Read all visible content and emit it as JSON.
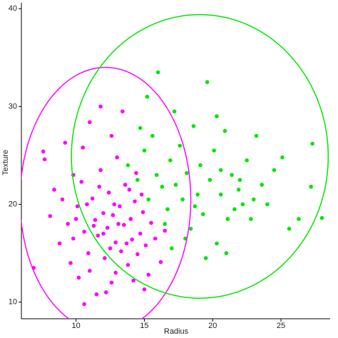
{
  "chart_data": {
    "type": "scatter",
    "x_label": "Radius",
    "y_label": "Texture",
    "xlim": [
      6.0,
      28.6
    ],
    "ylim": [
      8.3,
      40.6
    ],
    "xticks": [
      10,
      15,
      20,
      25
    ],
    "yticks": [
      10,
      20,
      30,
      40
    ],
    "grid": false,
    "series": [
      {
        "color": "#ff00ff",
        "x": [
          7.6,
          7.7,
          8.4,
          9.0,
          9.4,
          9.8,
          10.1,
          10.4,
          10.6,
          10.9,
          11.0,
          11.2,
          11.4,
          11.6,
          11.8,
          12.0,
          12.1,
          12.3,
          12.4,
          12.6,
          12.7,
          12.9,
          13.0,
          13.2,
          13.3,
          13.5,
          13.6,
          13.8,
          14.0,
          14.1,
          14.3,
          14.5,
          14.7,
          14.9,
          15.1,
          15.3,
          15.5,
          15.8,
          16.2,
          16.5,
          6.9,
          8.8,
          9.6,
          10.2,
          11.5,
          12.2,
          11.0,
          11.8,
          12.6,
          13.4,
          10.5,
          9.8,
          12.8,
          13.9,
          14.4,
          10.8,
          11.3,
          12.5,
          13.1,
          12.0,
          13.7,
          14.8,
          10.0,
          11.7,
          12.9,
          14.2,
          15.0,
          10.6,
          8.1,
          9.2
        ],
        "values": [
          25.4,
          24.6,
          21.5,
          20.5,
          18.0,
          16.5,
          19.8,
          22.3,
          17.2,
          15.0,
          13.2,
          20.6,
          18.4,
          16.8,
          23.5,
          19.1,
          14.5,
          17.6,
          21.2,
          12.0,
          18.9,
          16.1,
          24.8,
          19.8,
          15.2,
          17.9,
          22.0,
          13.8,
          18.5,
          16.4,
          20.3,
          14.9,
          17.0,
          19.2,
          15.8,
          12.8,
          18.1,
          16.5,
          14.1,
          17.3,
          13.5,
          16.0,
          14.0,
          12.5,
          10.8,
          11.0,
          28.4,
          30.0,
          27.0,
          29.5,
          25.8,
          23.0,
          20.0,
          21.5,
          23.2,
          20.0,
          17.8,
          15.5,
          18.0,
          17.0,
          16.0,
          21.0,
          18.5,
          21.8,
          13.0,
          12.2,
          11.3,
          9.8,
          18.8,
          26.3
        ],
        "ellipse": {
          "cx": 12.15,
          "cy": 20.5,
          "rx": 6.25,
          "ry": 13.5
        }
      },
      {
        "color": "#00e600",
        "x": [
          13.8,
          14.5,
          15.0,
          15.3,
          15.6,
          15.9,
          16.3,
          16.7,
          16.9,
          17.3,
          17.6,
          17.8,
          18.1,
          18.4,
          18.6,
          18.9,
          19.1,
          19.3,
          19.6,
          19.8,
          20.1,
          20.3,
          20.6,
          20.9,
          21.1,
          21.4,
          21.6,
          21.9,
          22.2,
          22.5,
          22.8,
          23.2,
          23.6,
          24.0,
          24.5,
          25.1,
          25.6,
          26.3,
          27.3,
          27.2,
          28.0,
          16.0,
          15.2,
          14.7,
          17.2,
          20.3,
          21.0,
          19.5,
          18.0,
          16.5,
          17.0,
          22.0,
          23.0,
          18.7,
          20.6
        ],
        "values": [
          24.0,
          22.5,
          25.5,
          20.5,
          27.0,
          23.0,
          21.8,
          19.5,
          24.5,
          22.0,
          26.0,
          20.5,
          23.2,
          17.5,
          28.0,
          21.0,
          24.0,
          19.0,
          32.5,
          22.5,
          25.5,
          16.0,
          21.0,
          27.5,
          18.5,
          23.0,
          19.5,
          21.5,
          20.0,
          24.5,
          18.5,
          27.0,
          22.0,
          20.0,
          23.5,
          24.8,
          17.5,
          18.5,
          26.2,
          21.8,
          18.6,
          33.5,
          31.0,
          27.8,
          29.5,
          29.0,
          15.0,
          14.5,
          16.5,
          18.0,
          15.5,
          22.5,
          20.5,
          19.8,
          23.5
        ],
        "ellipse": {
          "cx": 19.06,
          "cy": 24.9,
          "rx": 9.4,
          "ry": 14.5
        }
      }
    ]
  }
}
